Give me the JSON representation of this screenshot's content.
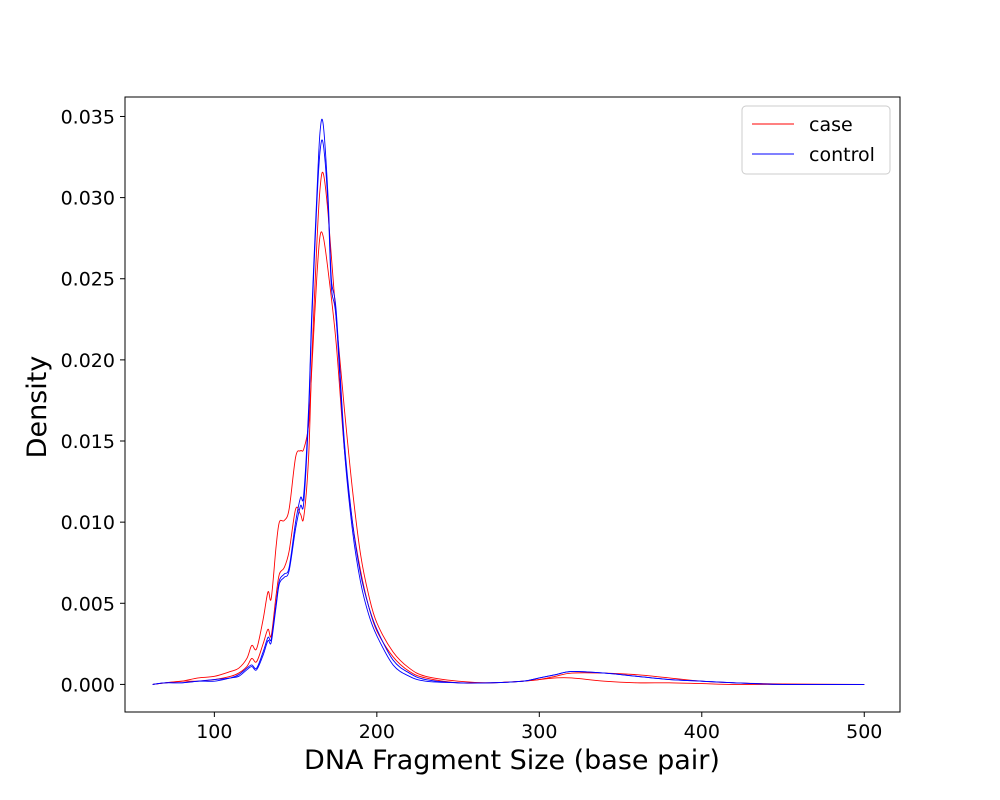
{
  "chart_data": {
    "type": "line",
    "title": "",
    "xlabel": "DNA Fragment Size (base pair)",
    "ylabel": "Density",
    "xlim": [
      45,
      522
    ],
    "ylim": [
      -0.0017,
      0.0362
    ],
    "xticks": [
      100,
      200,
      300,
      400,
      500
    ],
    "yticks": [
      0.0,
      0.005,
      0.01,
      0.015,
      0.02,
      0.025,
      0.03,
      0.035
    ],
    "ytick_labels": [
      "0.000",
      "0.005",
      "0.010",
      "0.015",
      "0.020",
      "0.025",
      "0.030",
      "0.035"
    ],
    "grid": false,
    "legend_position": "top-right",
    "legend": [
      {
        "label": "case",
        "color": "#ff0000"
      },
      {
        "label": "control",
        "color": "#0000ff"
      }
    ],
    "series": [
      {
        "name": "case",
        "color": "#ff0000",
        "x": [
          62,
          70,
          80,
          90,
          100,
          110,
          115,
          120,
          123,
          126,
          130,
          133,
          135,
          138,
          140,
          143,
          146,
          150,
          153,
          155,
          158,
          160,
          163,
          165,
          167,
          170,
          175,
          180,
          185,
          190,
          195,
          200,
          210,
          220,
          230,
          250,
          270,
          290,
          300,
          310,
          320,
          340,
          360,
          380,
          400,
          420,
          450,
          500
        ],
        "y": [
          0,
          0.0001,
          0.0002,
          0.0004,
          0.0005,
          0.0008,
          0.001,
          0.0016,
          0.0024,
          0.0022,
          0.004,
          0.0057,
          0.0053,
          0.0085,
          0.01,
          0.0101,
          0.0108,
          0.014,
          0.0144,
          0.0145,
          0.016,
          0.0195,
          0.025,
          0.0276,
          0.0276,
          0.0255,
          0.021,
          0.0145,
          0.01,
          0.007,
          0.0048,
          0.0033,
          0.0017,
          0.0008,
          0.0004,
          0.0001,
          0.0001,
          0.0002,
          0.0003,
          0.0004,
          0.0004,
          0.0002,
          0.0001,
          0.0001,
          5e-05,
          0,
          0,
          0
        ]
      },
      {
        "name": "case",
        "color": "#ff0000",
        "x": [
          62,
          70,
          80,
          90,
          100,
          110,
          115,
          120,
          123,
          126,
          130,
          133,
          135,
          138,
          140,
          143,
          146,
          150,
          153,
          155,
          158,
          160,
          163,
          165,
          167,
          170,
          175,
          180,
          185,
          190,
          195,
          200,
          210,
          220,
          230,
          250,
          270,
          290,
          300,
          310,
          320,
          340,
          360,
          380,
          400,
          420,
          450,
          500
        ],
        "y": [
          0,
          0.0001,
          0.0002,
          0.0002,
          0.0003,
          0.0005,
          0.0007,
          0.0011,
          0.0016,
          0.0014,
          0.0025,
          0.0034,
          0.003,
          0.0055,
          0.0068,
          0.0072,
          0.0082,
          0.0108,
          0.0105,
          0.0103,
          0.014,
          0.02,
          0.027,
          0.0305,
          0.0315,
          0.029,
          0.0225,
          0.017,
          0.012,
          0.008,
          0.0055,
          0.0038,
          0.002,
          0.001,
          0.0005,
          0.0002,
          0.0001,
          0.0002,
          0.0003,
          0.0005,
          0.0007,
          0.0007,
          0.0006,
          0.0004,
          0.0002,
          0.0001,
          3e-05,
          0
        ]
      },
      {
        "name": "control",
        "color": "#0000ff",
        "x": [
          62,
          70,
          80,
          90,
          100,
          110,
          115,
          120,
          123,
          126,
          130,
          133,
          135,
          138,
          140,
          143,
          146,
          150,
          153,
          155,
          158,
          160,
          163,
          165,
          167,
          170,
          172,
          175,
          180,
          185,
          190,
          195,
          200,
          210,
          220,
          230,
          250,
          270,
          290,
          300,
          310,
          320,
          340,
          360,
          380,
          400,
          420,
          450,
          500
        ],
        "y": [
          0,
          0.0001,
          0.0001,
          0.0002,
          0.0003,
          0.0004,
          0.0006,
          0.001,
          0.0012,
          0.001,
          0.002,
          0.0029,
          0.0028,
          0.005,
          0.0064,
          0.0068,
          0.0072,
          0.01,
          0.0115,
          0.0117,
          0.017,
          0.023,
          0.03,
          0.034,
          0.0345,
          0.03,
          0.025,
          0.023,
          0.015,
          0.01,
          0.0068,
          0.0048,
          0.0034,
          0.0015,
          0.0007,
          0.0003,
          0.0001,
          0.0001,
          0.0002,
          0.0004,
          0.0006,
          0.0008,
          0.0007,
          0.0005,
          0.0003,
          0.0002,
          0.0001,
          0,
          0
        ]
      },
      {
        "name": "control",
        "color": "#0000ff",
        "x": [
          62,
          70,
          80,
          90,
          100,
          110,
          115,
          120,
          123,
          126,
          130,
          133,
          135,
          138,
          140,
          143,
          146,
          150,
          153,
          155,
          158,
          160,
          163,
          165,
          167,
          170,
          172,
          175,
          180,
          185,
          190,
          195,
          200,
          210,
          220,
          230,
          250,
          270,
          290,
          300,
          310,
          320,
          340,
          360,
          380,
          400,
          420,
          450,
          500
        ],
        "y": [
          0,
          0.0001,
          0.0001,
          0.0002,
          0.0002,
          0.0004,
          0.0005,
          0.0009,
          0.0011,
          0.0009,
          0.0018,
          0.0027,
          0.0026,
          0.0048,
          0.0062,
          0.0066,
          0.007,
          0.0096,
          0.011,
          0.0112,
          0.0165,
          0.0225,
          0.0295,
          0.0328,
          0.0333,
          0.0295,
          0.0245,
          0.0225,
          0.0145,
          0.0095,
          0.0063,
          0.0043,
          0.003,
          0.0012,
          0.0005,
          0.0002,
          0.0001,
          0.0001,
          0.0002,
          0.0004,
          0.0006,
          0.0008,
          0.0007,
          0.0005,
          0.0003,
          0.0002,
          0.0001,
          0,
          0
        ]
      }
    ]
  }
}
